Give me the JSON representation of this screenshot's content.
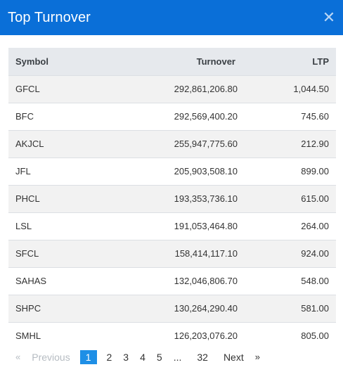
{
  "header": {
    "title": "Top Turnover",
    "close_glyph": "✕"
  },
  "table": {
    "columns": {
      "symbol": "Symbol",
      "turnover": "Turnover",
      "ltp": "LTP"
    },
    "rows": [
      {
        "symbol": "GFCL",
        "turnover": "292,861,206.80",
        "ltp": "1,044.50"
      },
      {
        "symbol": "BFC",
        "turnover": "292,569,400.20",
        "ltp": "745.60"
      },
      {
        "symbol": "AKJCL",
        "turnover": "255,947,775.60",
        "ltp": "212.90"
      },
      {
        "symbol": "JFL",
        "turnover": "205,903,508.10",
        "ltp": "899.00"
      },
      {
        "symbol": "PHCL",
        "turnover": "193,353,736.10",
        "ltp": "615.00"
      },
      {
        "symbol": "LSL",
        "turnover": "191,053,464.80",
        "ltp": "264.00"
      },
      {
        "symbol": "SFCL",
        "turnover": "158,414,117.10",
        "ltp": "924.00"
      },
      {
        "symbol": "SAHAS",
        "turnover": "132,046,806.70",
        "ltp": "548.00"
      },
      {
        "symbol": "SHPC",
        "turnover": "130,264,290.40",
        "ltp": "581.00"
      },
      {
        "symbol": "SMHL",
        "turnover": "126,203,076.20",
        "ltp": "805.00"
      }
    ]
  },
  "pagination": {
    "prev_arrow": "«",
    "previous": "Previous",
    "pages": [
      "1",
      "2",
      "3",
      "4",
      "5"
    ],
    "ellipsis": "...",
    "last": "32",
    "next": "Next",
    "next_arrow": "»",
    "active_page": "1"
  },
  "colors": {
    "header_bg": "#0a6fd8",
    "active_page_bg": "#1e8fe6"
  }
}
